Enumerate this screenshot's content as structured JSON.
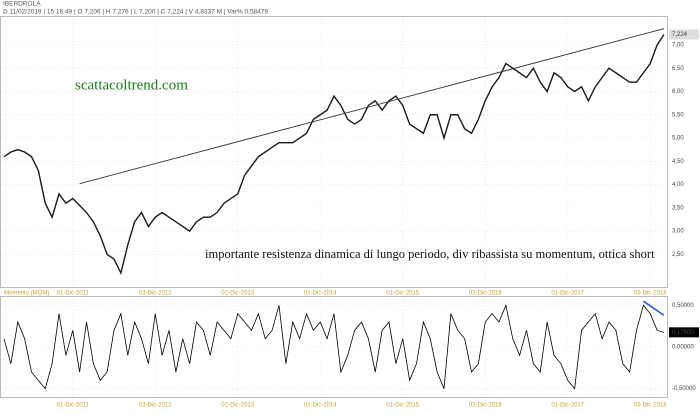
{
  "header": {
    "title": "IBERDROLA",
    "quote": "D 11/02/2019 | 15:16:49 | O 7,206 | H 7,276 | L 7,200 | C 7,224 | V 4,8337 M | Var% 0,58479"
  },
  "chart_data": [
    {
      "type": "line",
      "color": "#1a1a1a",
      "annotations": [
        "scattacoltrend.com",
        "importante resistenza dinamica di lungo periodo, div ribassista su momentum, ottica short"
      ],
      "last_value_label": "7,224",
      "categories": [
        null,
        null,
        null,
        null,
        null,
        null,
        null,
        null,
        null,
        null,
        "01-Dic-2011",
        null,
        null,
        null,
        null,
        null,
        null,
        null,
        null,
        null,
        null,
        null,
        "03-Dic-2012",
        null,
        null,
        null,
        null,
        null,
        null,
        null,
        null,
        null,
        null,
        null,
        "02-Dic-2013",
        null,
        null,
        null,
        null,
        null,
        null,
        null,
        null,
        null,
        null,
        null,
        "01-Dic-2014",
        null,
        null,
        null,
        null,
        null,
        null,
        null,
        null,
        null,
        null,
        null,
        "01-Dic-2015",
        null,
        null,
        null,
        null,
        null,
        null,
        null,
        null,
        null,
        null,
        null,
        "01-Dic-2016",
        null,
        null,
        null,
        null,
        null,
        null,
        null,
        null,
        null,
        null,
        null,
        "01-Dic-2017",
        null,
        null,
        null,
        null,
        null,
        null,
        null,
        null,
        null,
        null,
        null,
        "03-Dic-2018",
        null,
        null
      ],
      "values": [
        4.6,
        4.7,
        4.75,
        4.7,
        4.6,
        4.3,
        3.6,
        3.3,
        3.8,
        3.6,
        3.7,
        3.55,
        3.4,
        3.2,
        2.9,
        2.5,
        2.4,
        2.1,
        2.7,
        3.2,
        3.4,
        3.1,
        3.3,
        3.4,
        3.3,
        3.2,
        3.1,
        3.0,
        3.2,
        3.3,
        3.3,
        3.4,
        3.6,
        3.7,
        3.8,
        4.2,
        4.4,
        4.6,
        4.7,
        4.8,
        4.9,
        4.9,
        4.9,
        5.0,
        5.1,
        5.4,
        5.5,
        5.6,
        5.9,
        5.7,
        5.4,
        5.3,
        5.4,
        5.7,
        5.8,
        5.6,
        5.8,
        5.9,
        5.7,
        5.3,
        5.2,
        5.1,
        5.5,
        5.5,
        5.0,
        5.5,
        5.5,
        5.2,
        5.1,
        5.4,
        5.8,
        6.1,
        6.3,
        6.6,
        6.5,
        6.4,
        6.3,
        6.5,
        6.2,
        6.0,
        6.4,
        6.3,
        6.1,
        6.0,
        6.1,
        5.8,
        6.1,
        6.3,
        6.5,
        6.4,
        6.3,
        6.2,
        6.2,
        6.4,
        6.6,
        7.0,
        7.224
      ],
      "trendline": {
        "from": [
          11,
          4.02
        ],
        "to": [
          96,
          7.35
        ],
        "color": "#333333"
      },
      "ylim": [
        1.8,
        7.6
      ],
      "yticks": [
        {
          "value": 2.5,
          "label": "2,50"
        },
        {
          "value": 3,
          "label": "3,00"
        },
        {
          "value": 3.5,
          "label": "3,50"
        },
        {
          "value": 4,
          "label": "4,00"
        },
        {
          "value": 4.5,
          "label": "4,50"
        },
        {
          "value": 5,
          "label": "5,00"
        },
        {
          "value": 5.5,
          "label": "5,50"
        },
        {
          "value": 6,
          "label": "6,00"
        },
        {
          "value": 6.5,
          "label": "6,50"
        },
        {
          "value": 7,
          "label": "7,00"
        }
      ],
      "grid": true
    },
    {
      "type": "line",
      "color": "#000000",
      "title": "Momento (MOM)",
      "last_value_label": "0,17600",
      "categories": [
        null,
        null,
        null,
        null,
        null,
        null,
        null,
        null,
        null,
        null,
        "01-Dic-2011",
        null,
        null,
        null,
        null,
        null,
        null,
        null,
        null,
        null,
        null,
        null,
        "03-Dic-2012",
        null,
        null,
        null,
        null,
        null,
        null,
        null,
        null,
        null,
        null,
        null,
        "02-Dic-2013",
        null,
        null,
        null,
        null,
        null,
        null,
        null,
        null,
        null,
        null,
        null,
        "01-Dic-2014",
        null,
        null,
        null,
        null,
        null,
        null,
        null,
        null,
        null,
        null,
        null,
        "01-Dic-2015",
        null,
        null,
        null,
        null,
        null,
        null,
        null,
        null,
        null,
        null,
        null,
        "01-Dic-2016",
        null,
        null,
        null,
        null,
        null,
        null,
        null,
        null,
        null,
        null,
        null,
        "01-Dic-2017",
        null,
        null,
        null,
        null,
        null,
        null,
        null,
        null,
        null,
        null,
        null,
        "03-Dic-2018",
        null,
        null
      ],
      "values": [
        0.1,
        -0.2,
        0.3,
        0.1,
        -0.3,
        -0.4,
        -0.5,
        -0.2,
        0.4,
        -0.1,
        0.2,
        -0.3,
        0.3,
        -0.2,
        -0.4,
        -0.3,
        0.2,
        0.4,
        -0.1,
        0.3,
        0.1,
        -0.2,
        0.4,
        -0.1,
        0.2,
        -0.3,
        0.1,
        -0.2,
        0.3,
        0.2,
        -0.1,
        0.3,
        0.2,
        0.1,
        0.4,
        0.3,
        0.2,
        0.4,
        0.1,
        0.2,
        0.5,
        -0.2,
        0.3,
        0.1,
        0.4,
        0.2,
        0.3,
        0.1,
        0.4,
        -0.3,
        -0.1,
        0.2,
        0.3,
        0.1,
        -0.3,
        0.2,
        0.3,
        -0.2,
        0.1,
        -0.4,
        -0.2,
        0.3,
        0.1,
        -0.3,
        -0.5,
        0.4,
        0.2,
        0.1,
        -0.3,
        -0.2,
        0.3,
        0.4,
        0.3,
        0.5,
        0.1,
        -0.1,
        0.2,
        -0.2,
        -0.3,
        0.3,
        -0.1,
        -0.2,
        -0.4,
        -0.5,
        0.2,
        0.3,
        0.4,
        0.1,
        0.3,
        0.2,
        -0.2,
        -0.3,
        0.2,
        0.5,
        0.4,
        0.2,
        0.176
      ],
      "trendline": {
        "from": [
          93,
          0.55
        ],
        "to": [
          96,
          0.38
        ],
        "color": "#2a5fd8"
      },
      "ylim": [
        -0.6,
        0.6
      ],
      "yticks": [
        {
          "value": -0.5,
          "label": "-0,50000"
        },
        {
          "value": 0,
          "label": "0,00000"
        },
        {
          "value": 0.5,
          "label": "0,50000"
        }
      ],
      "grid": true
    }
  ]
}
